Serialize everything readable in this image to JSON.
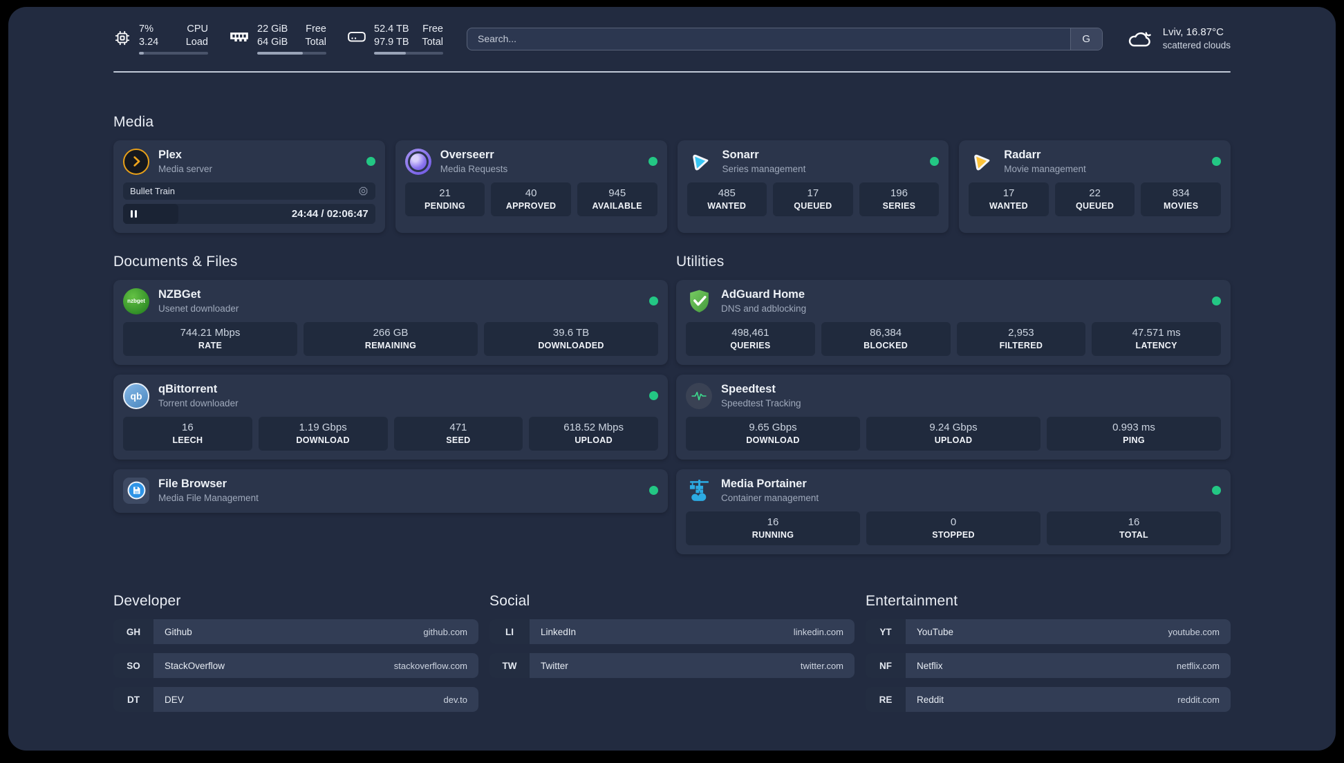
{
  "header": {
    "metrics": [
      {
        "icon": "cpu-icon",
        "value_top": "7%",
        "label_top": "CPU",
        "value_bottom": "3.24",
        "label_bottom": "Load",
        "progress": 7
      },
      {
        "icon": "ram-icon",
        "value_top": "22 GiB",
        "label_top": "Free",
        "value_bottom": "64 GiB",
        "label_bottom": "Total",
        "progress": 66
      },
      {
        "icon": "disk-icon",
        "value_top": "52.4 TB",
        "label_top": "Free",
        "value_bottom": "97.9 TB",
        "label_bottom": "Total",
        "progress": 46
      }
    ],
    "search": {
      "placeholder": "Search...",
      "engine": "G"
    },
    "weather": {
      "location": "Lviv, 16.87°C",
      "condition": "scattered clouds"
    }
  },
  "sections": {
    "media": {
      "title": "Media",
      "plex": {
        "name": "Plex",
        "desc": "Media server",
        "status": "online",
        "now_playing": "Bullet Train",
        "time": "24:44 / 02:06:47"
      },
      "overseerr": {
        "name": "Overseerr",
        "desc": "Media Requests",
        "status": "online",
        "stats": [
          {
            "value": "21",
            "label": "PENDING"
          },
          {
            "value": "40",
            "label": "APPROVED"
          },
          {
            "value": "945",
            "label": "AVAILABLE"
          }
        ]
      },
      "sonarr": {
        "name": "Sonarr",
        "desc": "Series management",
        "status": "online",
        "stats": [
          {
            "value": "485",
            "label": "WANTED"
          },
          {
            "value": "17",
            "label": "QUEUED"
          },
          {
            "value": "196",
            "label": "SERIES"
          }
        ]
      },
      "radarr": {
        "name": "Radarr",
        "desc": "Movie management",
        "status": "online",
        "stats": [
          {
            "value": "17",
            "label": "WANTED"
          },
          {
            "value": "22",
            "label": "QUEUED"
          },
          {
            "value": "834",
            "label": "MOVIES"
          }
        ]
      }
    },
    "documents": {
      "title": "Documents & Files",
      "nzbget": {
        "name": "NZBGet",
        "desc": "Usenet downloader",
        "status": "online",
        "icon_text": "nzbget",
        "stats": [
          {
            "value": "744.21 Mbps",
            "label": "RATE"
          },
          {
            "value": "266 GB",
            "label": "REMAINING"
          },
          {
            "value": "39.6 TB",
            "label": "DOWNLOADED"
          }
        ]
      },
      "qbittorrent": {
        "name": "qBittorrent",
        "desc": "Torrent downloader",
        "status": "online",
        "icon_text": "qb",
        "stats": [
          {
            "value": "16",
            "label": "LEECH"
          },
          {
            "value": "1.19 Gbps",
            "label": "DOWNLOAD"
          },
          {
            "value": "471",
            "label": "SEED"
          },
          {
            "value": "618.52 Mbps",
            "label": "UPLOAD"
          }
        ]
      },
      "filebrowser": {
        "name": "File Browser",
        "desc": "Media File Management",
        "status": "online"
      }
    },
    "utilities": {
      "title": "Utilities",
      "adguard": {
        "name": "AdGuard Home",
        "desc": "DNS and adblocking",
        "status": "online",
        "stats": [
          {
            "value": "498,461",
            "label": "QUERIES"
          },
          {
            "value": "86,384",
            "label": "BLOCKED"
          },
          {
            "value": "2,953",
            "label": "FILTERED"
          },
          {
            "value": "47.571 ms",
            "label": "LATENCY"
          }
        ]
      },
      "speedtest": {
        "name": "Speedtest",
        "desc": "Speedtest Tracking",
        "stats": [
          {
            "value": "9.65 Gbps",
            "label": "DOWNLOAD"
          },
          {
            "value": "9.24 Gbps",
            "label": "UPLOAD"
          },
          {
            "value": "0.993 ms",
            "label": "PING"
          }
        ]
      },
      "portainer": {
        "name": "Media Portainer",
        "desc": "Container management",
        "status": "online",
        "stats": [
          {
            "value": "16",
            "label": "RUNNING"
          },
          {
            "value": "0",
            "label": "STOPPED"
          },
          {
            "value": "16",
            "label": "TOTAL"
          }
        ]
      }
    },
    "developer": {
      "title": "Developer",
      "links": [
        {
          "abbr": "GH",
          "name": "Github",
          "url": "github.com"
        },
        {
          "abbr": "SO",
          "name": "StackOverflow",
          "url": "stackoverflow.com"
        },
        {
          "abbr": "DT",
          "name": "DEV",
          "url": "dev.to"
        }
      ]
    },
    "social": {
      "title": "Social",
      "links": [
        {
          "abbr": "LI",
          "name": "LinkedIn",
          "url": "linkedin.com"
        },
        {
          "abbr": "TW",
          "name": "Twitter",
          "url": "twitter.com"
        }
      ]
    },
    "entertainment": {
      "title": "Entertainment",
      "links": [
        {
          "abbr": "YT",
          "name": "YouTube",
          "url": "youtube.com"
        },
        {
          "abbr": "NF",
          "name": "Netflix",
          "url": "netflix.com"
        },
        {
          "abbr": "RE",
          "name": "Reddit",
          "url": "reddit.com"
        }
      ]
    }
  },
  "colors": {
    "status_online": "#23c784",
    "page_bg": "#222b40",
    "card_bg": "#2b354b",
    "tile_bg": "#202a3d"
  }
}
